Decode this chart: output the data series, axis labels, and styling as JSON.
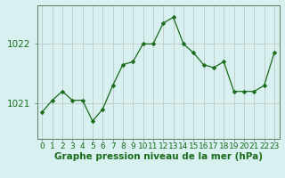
{
  "x": [
    0,
    1,
    2,
    3,
    4,
    5,
    6,
    7,
    8,
    9,
    10,
    11,
    12,
    13,
    14,
    15,
    16,
    17,
    18,
    19,
    20,
    21,
    22,
    23
  ],
  "y": [
    1020.85,
    1021.05,
    1021.2,
    1021.05,
    1021.05,
    1020.7,
    1020.9,
    1021.3,
    1021.65,
    1021.7,
    1022.0,
    1022.0,
    1022.35,
    1022.45,
    1022.0,
    1021.85,
    1021.65,
    1021.6,
    1021.7,
    1021.2,
    1021.2,
    1021.2,
    1021.3,
    1021.85
  ],
  "line_color": "#1a6b1a",
  "marker_color": "#1a6b1a",
  "bg_color": "#d8f0f0",
  "grid_color": "#c0c8c8",
  "axis_label_color": "#1a6b1a",
  "tick_color": "#1a6b1a",
  "spine_color": "#5a7a5a",
  "xlabel": "Graphe pression niveau de la mer (hPa)",
  "yticks": [
    1021,
    1022
  ],
  "ylim": [
    1020.4,
    1022.65
  ],
  "xlim": [
    -0.5,
    23.5
  ],
  "xlabel_fontsize": 7.5,
  "tick_fontsize": 6.5,
  "ytick_fontsize": 7.5
}
